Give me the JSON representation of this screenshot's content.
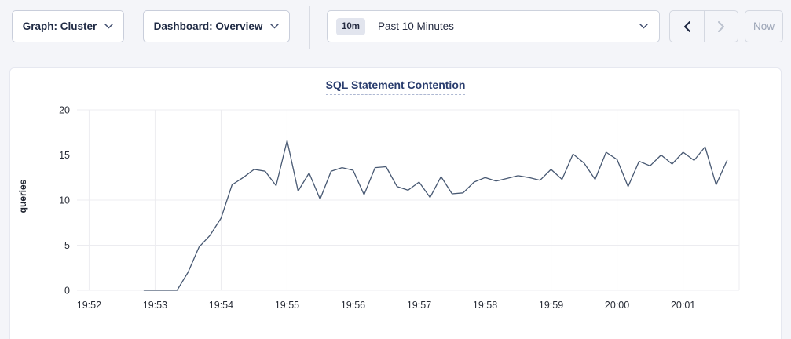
{
  "toolbar": {
    "graph_dropdown": {
      "label": "Graph: Cluster"
    },
    "dashboard_dropdown": {
      "label": "Dashboard: Overview"
    },
    "time_picker": {
      "badge": "10m",
      "label": "Past 10 Minutes"
    },
    "now_button": {
      "label": "Now"
    }
  },
  "chart_data": {
    "type": "line",
    "title": "SQL Statement Contention",
    "ylabel": "queries",
    "ylim": [
      0,
      20
    ],
    "y_ticks": [
      0,
      5,
      10,
      15,
      20
    ],
    "x_ticks": [
      "19:52",
      "19:53",
      "19:54",
      "19:55",
      "19:56",
      "19:57",
      "19:58",
      "19:59",
      "20:00",
      "20:01"
    ],
    "x_domain": [
      "19:51:49",
      "20:01:51"
    ],
    "grid": true,
    "legend": "none",
    "series": [
      {
        "name": "queries",
        "timestamps": [
          "19:52:50",
          "19:53:00",
          "19:53:10",
          "19:53:20",
          "19:53:30",
          "19:53:40",
          "19:53:50",
          "19:54:00",
          "19:54:10",
          "19:54:20",
          "19:54:30",
          "19:54:40",
          "19:54:50",
          "19:55:00",
          "19:55:10",
          "19:55:20",
          "19:55:30",
          "19:55:40",
          "19:55:50",
          "19:56:00",
          "19:56:10",
          "19:56:20",
          "19:56:30",
          "19:56:40",
          "19:56:50",
          "19:57:00",
          "19:57:10",
          "19:57:20",
          "19:57:30",
          "19:57:40",
          "19:57:50",
          "19:58:00",
          "19:58:10",
          "19:58:20",
          "19:58:30",
          "19:58:40",
          "19:58:50",
          "19:59:00",
          "19:59:10",
          "19:59:20",
          "19:59:30",
          "19:59:40",
          "19:59:50",
          "20:00:00",
          "20:00:10",
          "20:00:20",
          "20:00:30",
          "20:00:40",
          "20:00:50",
          "20:01:00",
          "20:01:10",
          "20:01:20",
          "20:01:30",
          "20:01:40"
        ],
        "values": [
          0,
          0,
          0,
          0,
          2.0,
          4.8,
          6.1,
          8.0,
          11.7,
          12.5,
          13.4,
          13.2,
          11.6,
          16.6,
          11.0,
          13.0,
          10.1,
          13.2,
          13.6,
          13.3,
          10.6,
          13.6,
          13.7,
          11.5,
          11.1,
          12.0,
          10.3,
          12.6,
          10.7,
          10.8,
          12.0,
          12.5,
          12.1,
          12.4,
          12.7,
          12.5,
          12.2,
          13.4,
          12.3,
          15.1,
          14.1,
          12.3,
          15.3,
          14.5,
          11.5,
          14.3,
          13.8,
          15.0,
          14.0,
          15.3,
          14.4,
          15.9,
          11.7,
          14.4
        ]
      }
    ]
  },
  "colors": {
    "line": "#475872",
    "grid": "#ececf0",
    "tick_text": "#2a2e38",
    "accent_navy": "#1f2a44",
    "page_bg": "#f4f5f9"
  }
}
